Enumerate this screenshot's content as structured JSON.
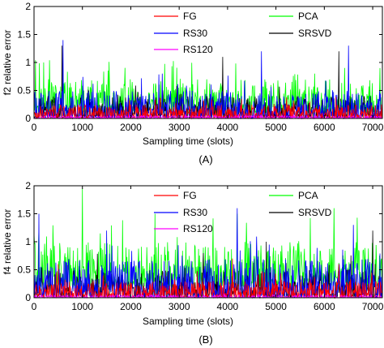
{
  "colors": {
    "FG": "#ff0000",
    "RS30": "#0000ff",
    "RS120": "#ff00ff",
    "PCA": "#00ff00",
    "SRSVD": "#000000"
  },
  "chart_data": [
    {
      "type": "line",
      "panel_label": "(A)",
      "xlabel": "Sampling time (slots)",
      "ylabel": "f2 relative error",
      "xlim": [
        0,
        7200
      ],
      "ylim": [
        0,
        2
      ],
      "xticks": [
        0,
        1000,
        2000,
        3000,
        4000,
        5000,
        6000,
        7000
      ],
      "yticks": [
        0,
        0.5,
        1,
        1.5,
        2
      ],
      "xtick_labels": [
        "0",
        "1000",
        "2000",
        "3000",
        "4000",
        "5000",
        "6000",
        "7000"
      ],
      "ytick_labels": [
        "0",
        "0.5",
        "1",
        "1.5",
        "2"
      ],
      "legend_location": "upper",
      "series": [
        {
          "name": "FG",
          "color": "#ff0000",
          "typical_range": [
            0,
            0.25
          ],
          "peaks": [
            [
              2600,
              0.35
            ],
            [
              5700,
              0.3
            ]
          ]
        },
        {
          "name": "RS30",
          "color": "#0000ff",
          "typical_range": [
            0,
            0.5
          ],
          "peaks": [
            [
              600,
              1.4
            ],
            [
              2650,
              0.8
            ],
            [
              4700,
              1.2
            ],
            [
              6500,
              1.3
            ]
          ]
        },
        {
          "name": "RS120",
          "color": "#ff00ff",
          "typical_range": [
            0,
            0.05
          ],
          "peaks": []
        },
        {
          "name": "PCA",
          "color": "#00ff00",
          "typical_range": [
            0.1,
            0.7
          ],
          "peaks": [
            [
              200,
              1.0
            ],
            [
              5800,
              0.8
            ],
            [
              7150,
              0.9
            ]
          ]
        },
        {
          "name": "SRSVD",
          "color": "#000000",
          "typical_range": [
            0,
            0.4
          ],
          "peaks": [
            [
              580,
              1.3
            ],
            [
              3900,
              1.1
            ],
            [
              6300,
              1.2
            ]
          ]
        }
      ]
    },
    {
      "type": "line",
      "panel_label": "(B)",
      "xlabel": "Sampling time (slots)",
      "ylabel": "f4 relative error",
      "xlim": [
        0,
        7200
      ],
      "ylim": [
        0,
        2
      ],
      "xticks": [
        0,
        1000,
        2000,
        3000,
        4000,
        5000,
        6000,
        7000
      ],
      "yticks": [
        0,
        0.5,
        1,
        1.5,
        2
      ],
      "xtick_labels": [
        "0",
        "1000",
        "2000",
        "3000",
        "4000",
        "5000",
        "6000",
        "7000"
      ],
      "ytick_labels": [
        "0",
        "0.5",
        "1",
        "1.5",
        "2"
      ],
      "legend_location": "upper",
      "series": [
        {
          "name": "FG",
          "color": "#ff0000",
          "typical_range": [
            0,
            0.3
          ],
          "peaks": [
            [
              500,
              0.6
            ],
            [
              4100,
              0.7
            ],
            [
              6300,
              0.6
            ]
          ]
        },
        {
          "name": "RS30",
          "color": "#0000ff",
          "typical_range": [
            0,
            0.7
          ],
          "peaks": [
            [
              100,
              1.5
            ],
            [
              1500,
              1.2
            ],
            [
              4200,
              1.6
            ],
            [
              6600,
              1.3
            ]
          ]
        },
        {
          "name": "RS120",
          "color": "#ff00ff",
          "typical_range": [
            0,
            0.05
          ],
          "peaks": []
        },
        {
          "name": "PCA",
          "color": "#00ff00",
          "typical_range": [
            0.2,
            1.0
          ],
          "peaks": [
            [
              1000,
              1.95
            ],
            [
              2500,
              1.5
            ],
            [
              4200,
              1.5
            ],
            [
              6200,
              1.6
            ]
          ]
        },
        {
          "name": "SRSVD",
          "color": "#000000",
          "typical_range": [
            0,
            0.5
          ],
          "peaks": [
            [
              4800,
              1.0
            ],
            [
              7000,
              1.2
            ]
          ]
        }
      ]
    }
  ]
}
